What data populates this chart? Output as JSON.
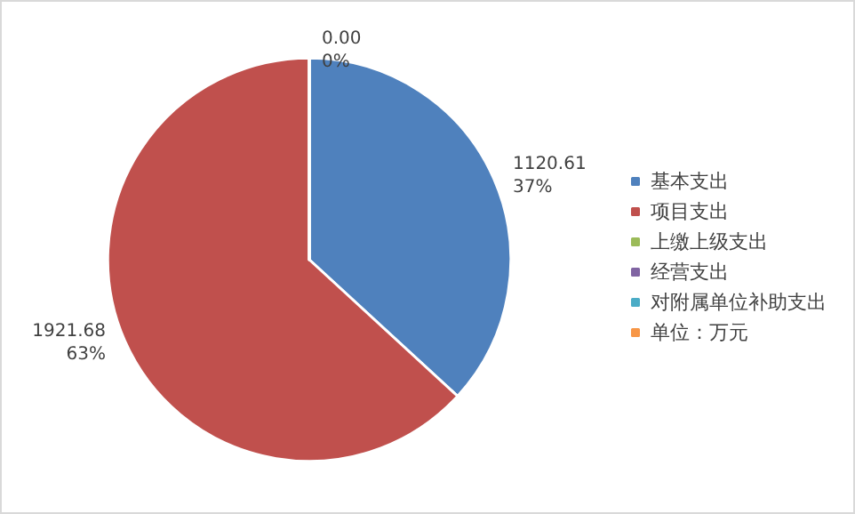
{
  "chart_data": {
    "type": "pie",
    "categories": [
      "基本支出",
      "项目支出",
      "上缴上级支出",
      "经营支出",
      "对附属单位补助支出",
      "单位：万元"
    ],
    "values": [
      1120.61,
      1921.68,
      0,
      0,
      0,
      null
    ],
    "colors": [
      "#4f81bd",
      "#c0504d",
      "#9bbb59",
      "#8064a2",
      "#4bacc6",
      "#f79646"
    ],
    "value_labels": [
      "1120.61\n37%",
      "1921.68\n63%",
      "0.00\n0%",
      null,
      null,
      null
    ],
    "legend": "right"
  }
}
